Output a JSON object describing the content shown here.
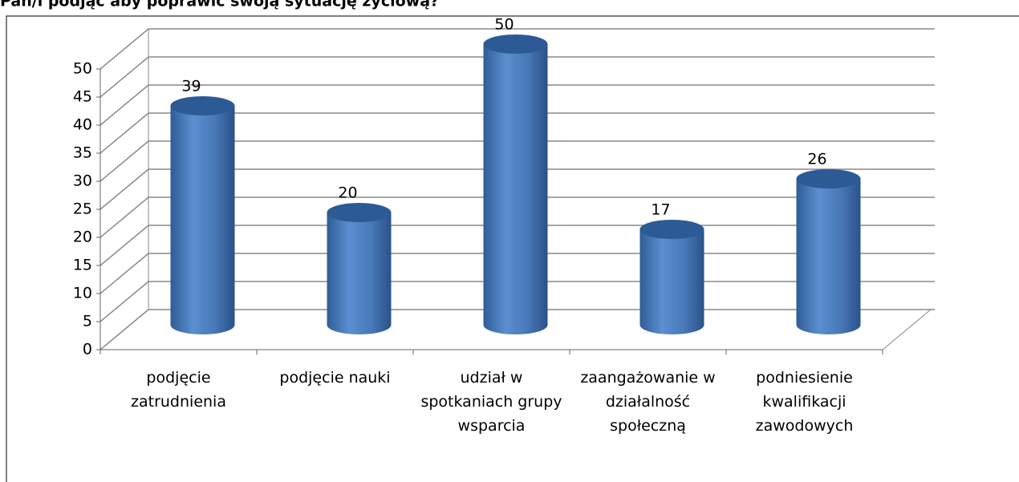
{
  "chart_data": {
    "type": "bar",
    "title": "Pan/i podjąć aby poprawić swoją sytuację życiową?",
    "categories": [
      "podjęcie zatrudnienia",
      "podjęcie nauki",
      "udział w spotkaniach grupy wsparcia",
      "zaangażowanie w działalność społeczną",
      "podniesienie kwalifikacji zawodowych"
    ],
    "values": [
      39,
      20,
      50,
      17,
      26
    ],
    "color": "#4f81bd",
    "ylim": [
      0,
      50
    ],
    "yticks": [
      0,
      5,
      10,
      15,
      20,
      25,
      30,
      35,
      40,
      45,
      50
    ],
    "grid": true
  }
}
